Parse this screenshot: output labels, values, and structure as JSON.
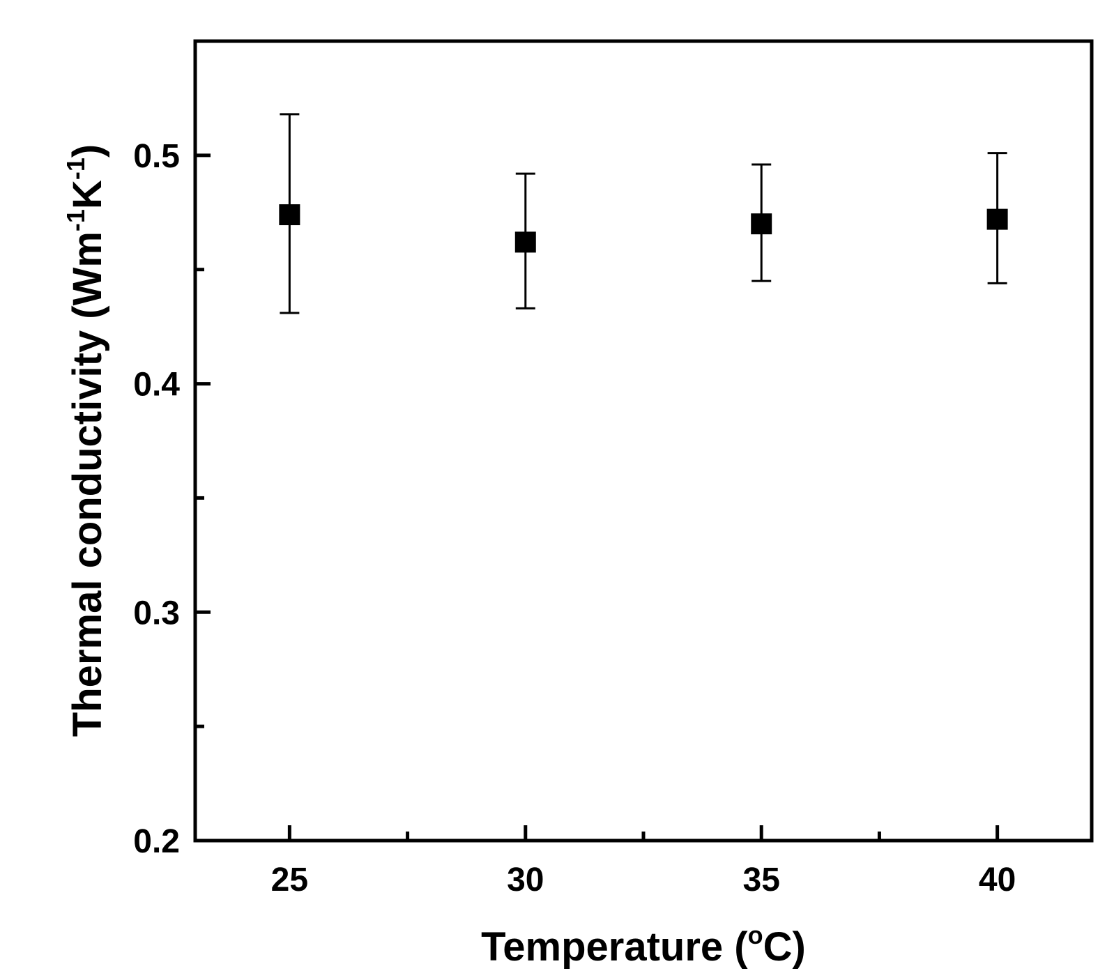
{
  "chart_data": {
    "type": "scatter",
    "xlabel": {
      "prefix": "Temperature (",
      "sup": "o",
      "suffix": "C)"
    },
    "ylabel": {
      "text1": "Thermal conductivity (Wm",
      "sup1": "-1",
      "text2": "K",
      "sup2": "-1",
      "text3": ")"
    },
    "xlim": [
      23,
      42
    ],
    "ylim": [
      0.2,
      0.55
    ],
    "x_ticks": [
      25,
      30,
      35,
      40
    ],
    "x_tick_labels": [
      "25",
      "30",
      "35",
      "40"
    ],
    "x_minor_ticks": [
      27.5,
      32.5,
      37.5
    ],
    "y_ticks": [
      0.2,
      0.3,
      0.4,
      0.5
    ],
    "y_tick_labels": [
      "0.2",
      "0.3",
      "0.4",
      "0.5"
    ],
    "y_minor_ticks": [
      0.25,
      0.35,
      0.45
    ],
    "grid": false,
    "marker": "square",
    "color": "#000000",
    "series": [
      {
        "x": [
          25,
          30,
          35,
          40
        ],
        "y": [
          0.474,
          0.462,
          0.47,
          0.472
        ],
        "y_err_low": [
          0.431,
          0.433,
          0.445,
          0.444
        ],
        "y_err_high": [
          0.518,
          0.492,
          0.496,
          0.501
        ]
      }
    ]
  }
}
